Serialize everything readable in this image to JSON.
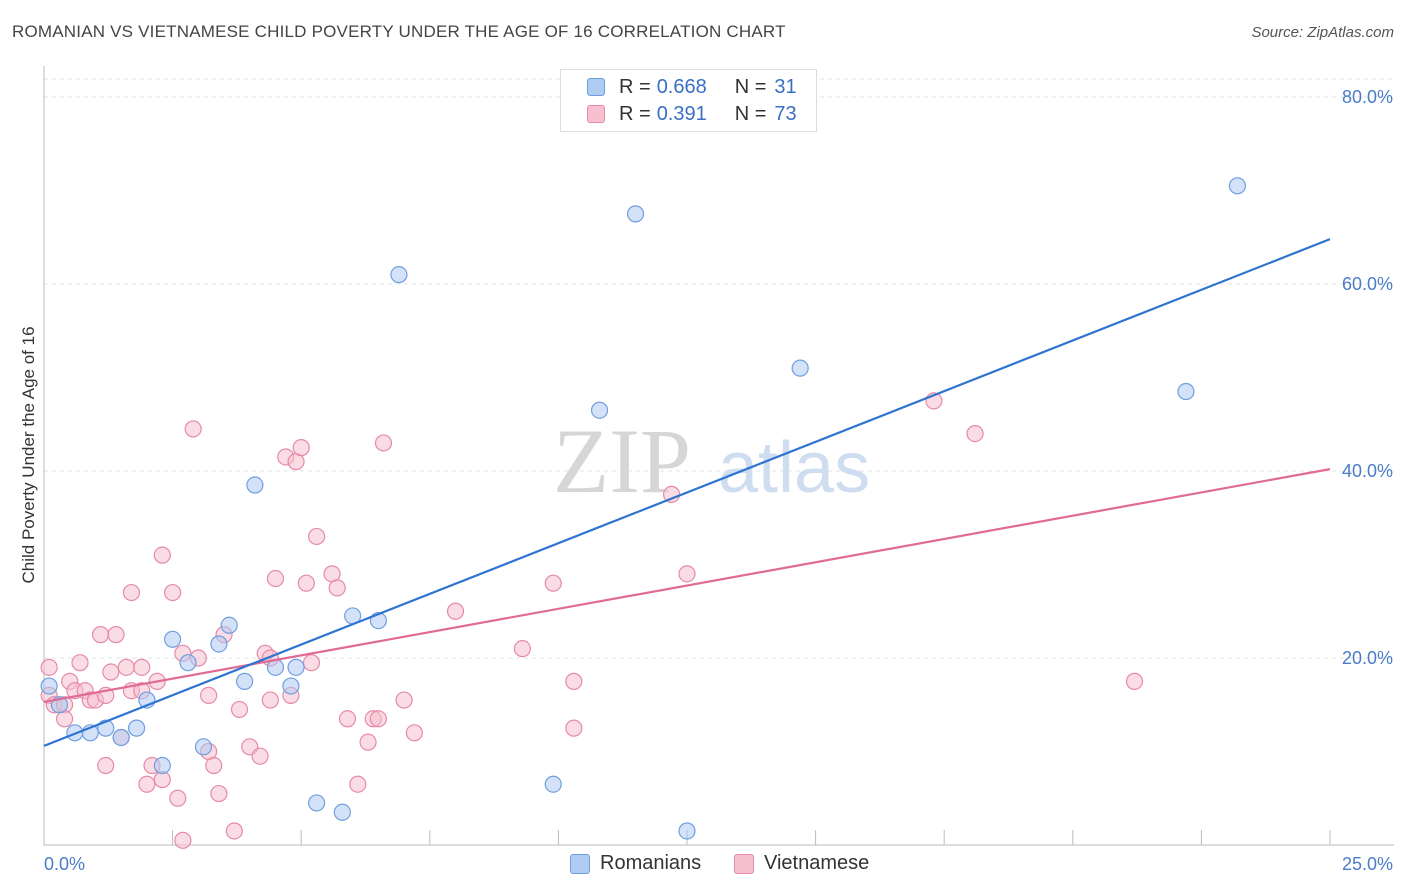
{
  "header": {
    "title": "ROMANIAN VS VIETNAMESE CHILD POVERTY UNDER THE AGE OF 16 CORRELATION CHART",
    "source": "Source: ZipAtlas.com"
  },
  "watermark": {
    "zip": "ZIP",
    "atlas": "atlas"
  },
  "legend": {
    "rows": [
      {
        "r_label": "R =",
        "r_value": "0.668",
        "n_label": "N =",
        "n_value": "31"
      },
      {
        "r_label": "R =",
        "r_value": "0.391",
        "n_label": "N =",
        "n_value": "73"
      }
    ]
  },
  "bottom_legend": {
    "romanians": "Romanians",
    "vietnamese": "Vietnamese"
  },
  "colors": {
    "romanian_fill": "#aecbf2",
    "romanian_stroke": "#6f9fde",
    "romanian_line": "#2f74d0",
    "vietnamese_fill": "#f6c0d0",
    "vietnamese_stroke": "#e68aa8",
    "vietnamese_line": "#e06b96",
    "tick_text": "#4a7cc7",
    "grid": "#e3e3e3"
  },
  "chart_data": {
    "type": "scatter",
    "title": "ROMANIAN VS VIETNAMESE CHILD POVERTY UNDER THE AGE OF 16 CORRELATION CHART",
    "xlabel": "",
    "ylabel": "Child Poverty Under the Age of 16",
    "xlim": [
      0,
      25
    ],
    "ylim": [
      0,
      80
    ],
    "x_tick_labels": [
      "0.0%",
      "25.0%"
    ],
    "y_ticks": [
      20,
      40,
      60,
      80
    ],
    "y_tick_labels": [
      "20.0%",
      "40.0%",
      "60.0%",
      "80.0%"
    ],
    "grid": true,
    "legend_position": "top-center",
    "series": [
      {
        "name": "Romanians",
        "points": [
          [
            0.1,
            17.0
          ],
          [
            0.3,
            15.0
          ],
          [
            0.6,
            12.0
          ],
          [
            0.9,
            12.0
          ],
          [
            1.2,
            12.5
          ],
          [
            1.5,
            11.5
          ],
          [
            1.8,
            12.5
          ],
          [
            2.0,
            15.5
          ],
          [
            2.3,
            8.5
          ],
          [
            2.5,
            22.0
          ],
          [
            2.8,
            19.5
          ],
          [
            3.1,
            10.5
          ],
          [
            3.4,
            21.5
          ],
          [
            3.6,
            23.5
          ],
          [
            3.9,
            17.5
          ],
          [
            4.1,
            38.5
          ],
          [
            4.5,
            19.0
          ],
          [
            4.8,
            17.0
          ],
          [
            4.9,
            19.0
          ],
          [
            5.3,
            4.5
          ],
          [
            5.8,
            3.5
          ],
          [
            6.0,
            24.5
          ],
          [
            6.5,
            24.0
          ],
          [
            6.9,
            61.0
          ],
          [
            9.9,
            6.5
          ],
          [
            10.8,
            46.5
          ],
          [
            11.5,
            67.5
          ],
          [
            12.5,
            1.5
          ],
          [
            14.7,
            51.0
          ],
          [
            22.2,
            48.5
          ],
          [
            23.2,
            70.5
          ]
        ],
        "trend": {
          "x": [
            0,
            25
          ],
          "y": [
            10.6,
            64.8
          ]
        }
      },
      {
        "name": "Vietnamese",
        "points": [
          [
            0.1,
            19.0
          ],
          [
            0.1,
            16.0
          ],
          [
            0.2,
            15.0
          ],
          [
            0.4,
            15.0
          ],
          [
            0.4,
            13.5
          ],
          [
            0.5,
            17.5
          ],
          [
            0.6,
            16.5
          ],
          [
            0.7,
            19.5
          ],
          [
            0.8,
            16.5
          ],
          [
            0.9,
            15.5
          ],
          [
            1.0,
            15.5
          ],
          [
            1.1,
            22.5
          ],
          [
            1.2,
            16.0
          ],
          [
            1.2,
            8.5
          ],
          [
            1.3,
            18.5
          ],
          [
            1.4,
            22.5
          ],
          [
            1.5,
            11.5
          ],
          [
            1.6,
            19.0
          ],
          [
            1.7,
            16.5
          ],
          [
            1.7,
            27.0
          ],
          [
            1.9,
            16.5
          ],
          [
            1.9,
            19.0
          ],
          [
            2.0,
            6.5
          ],
          [
            2.1,
            8.5
          ],
          [
            2.2,
            17.5
          ],
          [
            2.3,
            7.0
          ],
          [
            2.3,
            31.0
          ],
          [
            2.5,
            27.0
          ],
          [
            2.6,
            5.0
          ],
          [
            2.7,
            20.5
          ],
          [
            2.7,
            0.5
          ],
          [
            2.9,
            44.5
          ],
          [
            3.0,
            20.0
          ],
          [
            3.2,
            16.0
          ],
          [
            3.2,
            10.0
          ],
          [
            3.3,
            8.5
          ],
          [
            3.4,
            5.5
          ],
          [
            3.5,
            22.5
          ],
          [
            3.7,
            1.5
          ],
          [
            3.8,
            14.5
          ],
          [
            4.0,
            10.5
          ],
          [
            4.2,
            9.5
          ],
          [
            4.3,
            20.5
          ],
          [
            4.4,
            20.0
          ],
          [
            4.4,
            15.5
          ],
          [
            4.5,
            28.5
          ],
          [
            4.7,
            41.5
          ],
          [
            4.8,
            16.0
          ],
          [
            4.9,
            41.0
          ],
          [
            5.0,
            42.5
          ],
          [
            5.1,
            28.0
          ],
          [
            5.2,
            19.5
          ],
          [
            5.3,
            33.0
          ],
          [
            5.6,
            29.0
          ],
          [
            5.7,
            27.5
          ],
          [
            5.9,
            13.5
          ],
          [
            6.1,
            6.5
          ],
          [
            6.3,
            11.0
          ],
          [
            6.4,
            13.5
          ],
          [
            6.5,
            13.5
          ],
          [
            6.6,
            43.0
          ],
          [
            7.0,
            15.5
          ],
          [
            7.2,
            12.0
          ],
          [
            8.0,
            25.0
          ],
          [
            9.3,
            21.0
          ],
          [
            9.9,
            28.0
          ],
          [
            10.3,
            12.5
          ],
          [
            10.3,
            17.5
          ],
          [
            12.2,
            37.5
          ],
          [
            12.5,
            29.0
          ],
          [
            17.3,
            47.5
          ],
          [
            18.1,
            44.0
          ],
          [
            21.2,
            17.5
          ]
        ],
        "trend": {
          "x": [
            0,
            25
          ],
          "y": [
            15.3,
            40.2
          ]
        }
      }
    ]
  }
}
